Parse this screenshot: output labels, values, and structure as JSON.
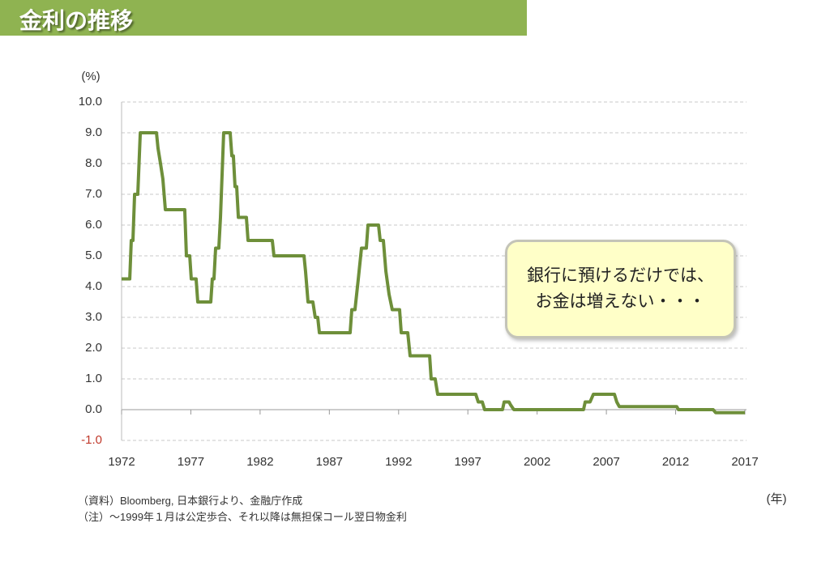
{
  "title": "金利の推移",
  "callout": [
    "銀行に預けるだけでは、",
    "お金は増えない・・・"
  ],
  "notes": [
    "（資料）Bloomberg, 日本銀行より、金融庁作成",
    "（注）～1999年１月は公定歩合、それ以降は無担保コール翌日物金利"
  ],
  "chart_data": {
    "type": "line",
    "y_unit": "(%)",
    "x_unit": "(年)",
    "x": [
      1972.0,
      1972.59,
      1972.7,
      1972.82,
      1972.94,
      1973.17,
      1973.35,
      1974.52,
      1974.63,
      1974.81,
      1974.98,
      1975.16,
      1976.56,
      1976.68,
      1976.92,
      1977.03,
      1977.38,
      1977.5,
      1978.44,
      1978.55,
      1978.67,
      1978.79,
      1979.02,
      1979.14,
      1979.37,
      1979.84,
      1979.96,
      1980.07,
      1980.19,
      1980.31,
      1980.43,
      1981.01,
      1981.13,
      1982.88,
      1983.0,
      1985.17,
      1985.28,
      1985.46,
      1985.81,
      1985.98,
      1986.16,
      1986.28,
      1988.5,
      1988.62,
      1988.85,
      1988.97,
      1989.09,
      1989.32,
      1989.67,
      1989.79,
      1990.55,
      1990.67,
      1990.9,
      1991.08,
      1991.31,
      1991.54,
      1992.07,
      1992.19,
      1992.66,
      1992.83,
      1994.24,
      1994.35,
      1994.64,
      1994.82,
      1997.57,
      1997.75,
      1998.04,
      1998.21,
      1999.5,
      1999.62,
      1999.97,
      2000.09,
      2000.32,
      2005.35,
      2005.47,
      2005.82,
      2006.06,
      2007.58,
      2007.75,
      2007.93,
      2012.08,
      2012.2,
      2014.71,
      2014.89,
      2017.0
    ],
    "series": [
      {
        "color": "#6e8f3a",
        "values": [
          4.25,
          4.25,
          5.5,
          5.5,
          7.0,
          7.0,
          9.0,
          9.0,
          8.5,
          8.0,
          7.5,
          6.5,
          6.5,
          5.0,
          5.0,
          4.25,
          4.25,
          3.5,
          3.5,
          4.25,
          4.25,
          5.25,
          5.25,
          6.25,
          9.0,
          9.0,
          8.25,
          8.25,
          7.25,
          7.25,
          6.25,
          6.25,
          5.5,
          5.5,
          5.0,
          5.0,
          4.5,
          3.5,
          3.5,
          3.0,
          3.0,
          2.5,
          2.5,
          3.25,
          3.25,
          3.75,
          4.25,
          5.25,
          5.25,
          6.0,
          6.0,
          5.5,
          5.5,
          4.5,
          3.75,
          3.25,
          3.25,
          2.5,
          2.5,
          1.75,
          1.75,
          1.0,
          1.0,
          0.5,
          0.5,
          0.25,
          0.25,
          0.0,
          0.0,
          0.25,
          0.25,
          0.15,
          0.0,
          0.0,
          0.25,
          0.25,
          0.5,
          0.5,
          0.25,
          0.1,
          0.1,
          0.0,
          0.0,
          -0.1,
          -0.1
        ]
      }
    ],
    "xlim": [
      1972,
      2017
    ],
    "xticks": [
      1972,
      1977,
      1982,
      1987,
      1992,
      1997,
      2002,
      2007,
      2012,
      2017
    ],
    "ylim": [
      -1,
      10
    ],
    "yticks": [
      {
        "value": -1,
        "label": "-1.0"
      },
      {
        "value": 0,
        "label": "0.0"
      },
      {
        "value": 1,
        "label": "1.0"
      },
      {
        "value": 2,
        "label": "2.0"
      },
      {
        "value": 3,
        "label": "3.0"
      },
      {
        "value": 4,
        "label": "4.0"
      },
      {
        "value": 5,
        "label": "5.0"
      },
      {
        "value": 6,
        "label": "6.0"
      },
      {
        "value": 7,
        "label": "7.0"
      },
      {
        "value": 8,
        "label": "8.0"
      },
      {
        "value": 9,
        "label": "9.0"
      },
      {
        "value": 10,
        "label": "10.0"
      }
    ],
    "grid": true
  }
}
